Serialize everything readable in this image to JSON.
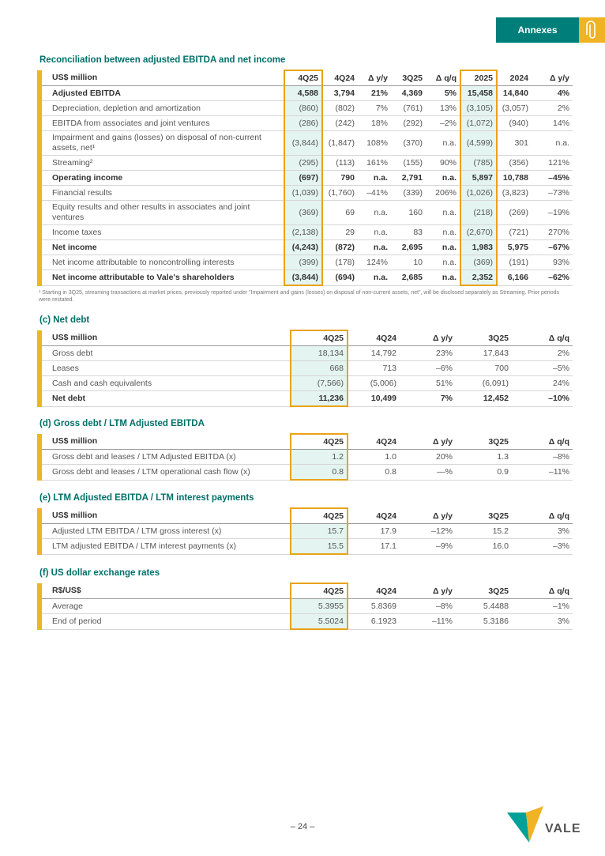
{
  "header": {
    "tab": "Annexes"
  },
  "sections": [
    {
      "title": "Reconciliation between adjusted EBITDA and net income",
      "columns": [
        "US$ million",
        "4Q25",
        "4Q24",
        "Δ y/y",
        "3Q25",
        "Δ q/q",
        "2025",
        "2024",
        "Δ y/y"
      ],
      "rows": [
        {
          "label": "Adjusted EBITDA",
          "bold": true,
          "values": [
            "4,588",
            "3,794",
            "21%",
            "4,369",
            "5%",
            "15,458",
            "14,840",
            "4%"
          ]
        },
        {
          "label": "Depreciation, depletion and amortization",
          "values": [
            "(860)",
            "(802)",
            "7%",
            "(761)",
            "13%",
            "(3,105)",
            "(3,057)",
            "2%"
          ]
        },
        {
          "label": "EBITDA from associates and joint ventures",
          "values": [
            "(286)",
            "(242)",
            "18%",
            "(292)",
            "–2%",
            "(1,072)",
            "(940)",
            "14%"
          ]
        },
        {
          "label": "Impairment and gains (losses) on disposal of non-current assets, net¹",
          "values": [
            "(3,844)",
            "(1,847)",
            "108%",
            "(370)",
            "n.a.",
            "(4,599)",
            "301",
            "n.a."
          ]
        },
        {
          "label": "Streaming²",
          "values": [
            "(295)",
            "(113)",
            "161%",
            "(155)",
            "90%",
            "(785)",
            "(356)",
            "121%"
          ]
        },
        {
          "label": "Operating income",
          "bold": true,
          "values": [
            "(697)",
            "790",
            "n.a.",
            "2,791",
            "n.a.",
            "5,897",
            "10,788",
            "–45%"
          ]
        },
        {
          "label": "Financial results",
          "values": [
            "(1,039)",
            "(1,760)",
            "–41%",
            "(339)",
            "206%",
            "(1,026)",
            "(3,823)",
            "–73%"
          ]
        },
        {
          "label": "Equity results and other results in associates and joint ventures",
          "values": [
            "(369)",
            "69",
            "n.a.",
            "160",
            "n.a.",
            "(218)",
            "(269)",
            "–19%"
          ]
        },
        {
          "label": "Income taxes",
          "values": [
            "(2,138)",
            "29",
            "n.a.",
            "83",
            "n.a.",
            "(2,670)",
            "(721)",
            "270%"
          ]
        },
        {
          "label": "Net income",
          "bold": true,
          "values": [
            "(4,243)",
            "(872)",
            "n.a.",
            "2,695",
            "n.a.",
            "1,983",
            "5,975",
            "–67%"
          ]
        },
        {
          "label": "Net income attributable to noncontrolling interests",
          "values": [
            "(399)",
            "(178)",
            "124%",
            "10",
            "n.a.",
            "(369)",
            "(191)",
            "93%"
          ]
        },
        {
          "label": "Net income attributable to Vale's shareholders",
          "bold": true,
          "values": [
            "(3,844)",
            "(694)",
            "n.a.",
            "2,685",
            "n.a.",
            "2,352",
            "6,166",
            "–62%"
          ]
        }
      ],
      "note": "¹ Starting in 3Q25, streaming transactions at market prices, previously reported under \"Impairment and gains (losses) on disposal of non-current assets, net\", will be disclosed separately as Streaming. Prior periods were restated."
    },
    {
      "title": "(c) Net debt",
      "columns": [
        "US$ million",
        "4Q25",
        "4Q24",
        "Δ y/y",
        "3Q25",
        "Δ q/q"
      ],
      "rows": [
        {
          "label": "Gross debt",
          "values": [
            "18,134",
            "14,792",
            "23%",
            "17,843",
            "2%"
          ]
        },
        {
          "label": "Leases",
          "values": [
            "668",
            "713",
            "–6%",
            "700",
            "–5%"
          ]
        },
        {
          "label": "Cash and cash equivalents",
          "values": [
            "(7,566)",
            "(5,006)",
            "51%",
            "(6,091)",
            "24%"
          ]
        },
        {
          "label": "Net debt",
          "bold": true,
          "values": [
            "11,236",
            "10,499",
            "7%",
            "12,452",
            "–10%"
          ]
        }
      ]
    },
    {
      "title": "(d) Gross debt / LTM Adjusted EBITDA",
      "columns": [
        "US$ million",
        "4Q25",
        "4Q24",
        "Δ y/y",
        "3Q25",
        "Δ q/q"
      ],
      "rows": [
        {
          "label": "Gross debt and leases / LTM Adjusted EBITDA (x)",
          "values": [
            "1.2",
            "1.0",
            "20%",
            "1.3",
            "–8%"
          ]
        },
        {
          "label": "Gross debt and leases / LTM operational cash flow (x)",
          "values": [
            "0.8",
            "0.8",
            "—%",
            "0.9",
            "–11%"
          ]
        }
      ]
    },
    {
      "title": "(e) LTM Adjusted EBITDA / LTM interest payments",
      "columns": [
        "US$ million",
        "4Q25",
        "4Q24",
        "Δ y/y",
        "3Q25",
        "Δ q/q"
      ],
      "rows": [
        {
          "label": "Adjusted LTM EBITDA / LTM gross interest (x)",
          "values": [
            "15.7",
            "17.9",
            "–12%",
            "15.2",
            "3%"
          ]
        },
        {
          "label": "LTM adjusted EBITDA / LTM interest payments (x)",
          "values": [
            "15.5",
            "17.1",
            "–9%",
            "16.0",
            "–3%"
          ]
        }
      ]
    },
    {
      "title": "(f) US dollar exchange rates",
      "columns": [
        "R$/US$",
        "4Q25",
        "4Q24",
        "Δ y/y",
        "3Q25",
        "Δ q/q"
      ],
      "rows": [
        {
          "label": "Average",
          "values": [
            "5.3955",
            "5.8369",
            "–8%",
            "5.4488",
            "–1%"
          ]
        },
        {
          "label": "End of period",
          "values": [
            "5.5024",
            "6.1923",
            "–11%",
            "5.3186",
            "3%"
          ]
        }
      ]
    }
  ],
  "footer": {
    "page": "– 24 –",
    "logo": "VALE"
  }
}
